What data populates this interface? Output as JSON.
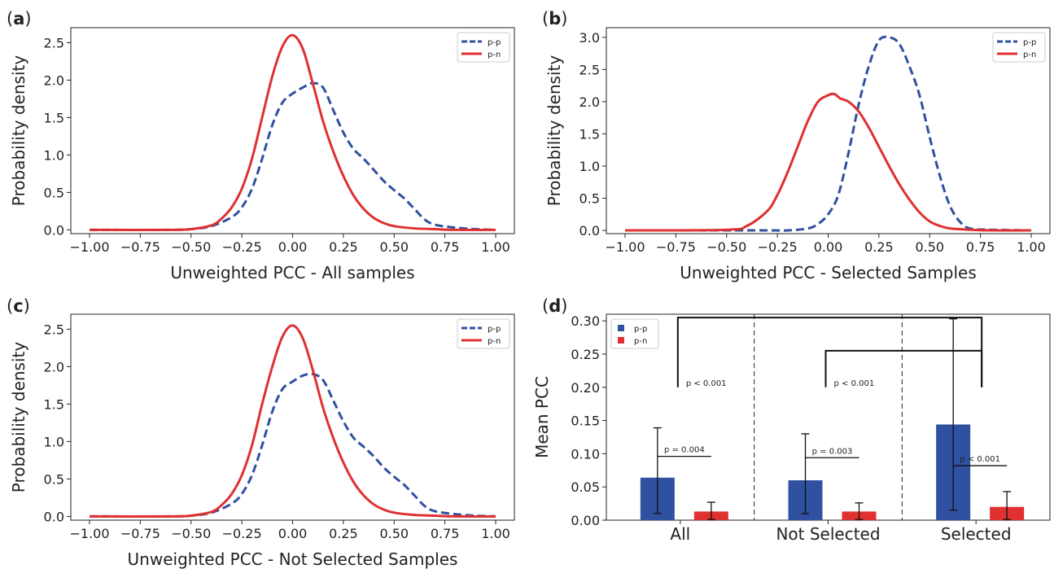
{
  "chart_data": [
    {
      "panel": "a",
      "type": "line",
      "xlabel": "Unweighted PCC - All samples",
      "ylabel": "Probability density",
      "xlim": [
        -1.0,
        1.0
      ],
      "ylim": [
        -0.05,
        2.7
      ],
      "x_ticks": [
        -1.0,
        -0.75,
        -0.5,
        -0.25,
        0.0,
        0.25,
        0.5,
        0.75,
        1.0
      ],
      "x_tick_labels": [
        "−1.00",
        "−0.75",
        "−0.50",
        "−0.25",
        "0.00",
        "0.25",
        "0.50",
        "0.75",
        "1.00"
      ],
      "y_ticks": [
        0.0,
        0.5,
        1.0,
        1.5,
        2.0,
        2.5
      ],
      "y_tick_labels": [
        "0.0",
        "0.5",
        "1.0",
        "1.5",
        "2.0",
        "2.5"
      ],
      "legend_position": "top-right",
      "grid": false,
      "series": [
        {
          "name": "p-p",
          "style": "dashed",
          "color": "#3050a0",
          "x": [
            -1.0,
            -0.6,
            -0.5,
            -0.4,
            -0.3,
            -0.25,
            -0.2,
            -0.15,
            -0.1,
            -0.05,
            0.0,
            0.05,
            0.1,
            0.15,
            0.2,
            0.25,
            0.3,
            0.35,
            0.4,
            0.45,
            0.5,
            0.55,
            0.6,
            0.65,
            0.7,
            0.8,
            0.9,
            1.0
          ],
          "y": [
            0.0,
            0.0,
            0.01,
            0.05,
            0.17,
            0.3,
            0.55,
            0.95,
            1.4,
            1.7,
            1.82,
            1.9,
            1.96,
            1.9,
            1.6,
            1.3,
            1.08,
            0.95,
            0.8,
            0.65,
            0.53,
            0.42,
            0.28,
            0.14,
            0.07,
            0.03,
            0.01,
            0.0
          ]
        },
        {
          "name": "p-n",
          "style": "solid",
          "color": "#e03030",
          "x": [
            -1.0,
            -0.6,
            -0.5,
            -0.4,
            -0.35,
            -0.3,
            -0.25,
            -0.2,
            -0.15,
            -0.1,
            -0.05,
            0.0,
            0.05,
            0.1,
            0.15,
            0.2,
            0.25,
            0.3,
            0.35,
            0.4,
            0.45,
            0.5,
            0.6,
            0.7,
            0.8,
            1.0
          ],
          "y": [
            0.0,
            0.0,
            0.01,
            0.06,
            0.15,
            0.3,
            0.55,
            0.95,
            1.5,
            2.05,
            2.45,
            2.6,
            2.42,
            1.95,
            1.45,
            1.05,
            0.72,
            0.46,
            0.28,
            0.16,
            0.09,
            0.05,
            0.02,
            0.01,
            0.0,
            0.0
          ]
        }
      ]
    },
    {
      "panel": "b",
      "type": "line",
      "xlabel": "Unweighted PCC - Selected Samples",
      "ylabel": "Probability density",
      "xlim": [
        -1.0,
        1.0
      ],
      "ylim": [
        -0.05,
        3.15
      ],
      "x_ticks": [
        -1.0,
        -0.75,
        -0.5,
        -0.25,
        0.0,
        0.25,
        0.5,
        0.75,
        1.0
      ],
      "x_tick_labels": [
        "−1.00",
        "−0.75",
        "−0.50",
        "−0.25",
        "0.00",
        "0.25",
        "0.50",
        "0.75",
        "1.00"
      ],
      "y_ticks": [
        0.0,
        0.5,
        1.0,
        1.5,
        2.0,
        2.5,
        3.0
      ],
      "y_tick_labels": [
        "0.0",
        "0.5",
        "1.0",
        "1.5",
        "2.0",
        "2.5",
        "3.0"
      ],
      "legend_position": "top-right",
      "grid": false,
      "series": [
        {
          "name": "p-p",
          "style": "dashed",
          "color": "#3050a0",
          "x": [
            -1.0,
            -0.3,
            -0.2,
            -0.1,
            -0.05,
            0.0,
            0.05,
            0.1,
            0.15,
            0.2,
            0.25,
            0.3,
            0.35,
            0.4,
            0.45,
            0.5,
            0.55,
            0.6,
            0.65,
            0.7,
            0.8,
            1.0
          ],
          "y": [
            0.0,
            0.0,
            0.0,
            0.03,
            0.1,
            0.25,
            0.55,
            1.2,
            1.95,
            2.55,
            2.95,
            3.0,
            2.9,
            2.55,
            2.1,
            1.45,
            0.85,
            0.38,
            0.13,
            0.03,
            0.01,
            0.0
          ]
        },
        {
          "name": "p-n",
          "style": "solid",
          "color": "#e03030",
          "x": [
            -1.0,
            -0.5,
            -0.4,
            -0.3,
            -0.25,
            -0.2,
            -0.15,
            -0.1,
            -0.05,
            0.0,
            0.03,
            0.06,
            0.1,
            0.15,
            0.2,
            0.25,
            0.3,
            0.35,
            0.4,
            0.45,
            0.5,
            0.55,
            0.6,
            0.7,
            0.8,
            1.0
          ],
          "y": [
            0.0,
            0.01,
            0.07,
            0.3,
            0.55,
            0.9,
            1.3,
            1.7,
            2.0,
            2.1,
            2.12,
            2.05,
            2.0,
            1.85,
            1.6,
            1.3,
            1.0,
            0.72,
            0.48,
            0.28,
            0.14,
            0.07,
            0.03,
            0.01,
            0.0,
            0.0
          ]
        }
      ]
    },
    {
      "panel": "c",
      "type": "line",
      "xlabel": "Unweighted PCC - Not Selected Samples",
      "ylabel": "Probability density",
      "xlim": [
        -1.0,
        1.0
      ],
      "ylim": [
        -0.05,
        2.7
      ],
      "x_ticks": [
        -1.0,
        -0.75,
        -0.5,
        -0.25,
        0.0,
        0.25,
        0.5,
        0.75,
        1.0
      ],
      "x_tick_labels": [
        "−1.00",
        "−0.75",
        "−0.50",
        "−0.25",
        "0.00",
        "0.25",
        "0.50",
        "0.75",
        "1.00"
      ],
      "y_ticks": [
        0.0,
        0.5,
        1.0,
        1.5,
        2.0,
        2.5
      ],
      "y_tick_labels": [
        "0.0",
        "0.5",
        "1.0",
        "1.5",
        "2.0",
        "2.5"
      ],
      "legend_position": "top-right",
      "grid": false,
      "series": [
        {
          "name": "p-p",
          "style": "dashed",
          "color": "#3050a0",
          "x": [
            -1.0,
            -0.6,
            -0.5,
            -0.4,
            -0.3,
            -0.25,
            -0.2,
            -0.15,
            -0.1,
            -0.05,
            0.0,
            0.05,
            0.1,
            0.15,
            0.2,
            0.25,
            0.3,
            0.35,
            0.4,
            0.45,
            0.5,
            0.55,
            0.6,
            0.65,
            0.7,
            0.8,
            0.9,
            1.0
          ],
          "y": [
            0.0,
            0.0,
            0.01,
            0.05,
            0.17,
            0.3,
            0.55,
            0.95,
            1.4,
            1.7,
            1.8,
            1.88,
            1.9,
            1.82,
            1.55,
            1.27,
            1.05,
            0.93,
            0.8,
            0.65,
            0.53,
            0.42,
            0.28,
            0.14,
            0.07,
            0.03,
            0.01,
            0.0
          ]
        },
        {
          "name": "p-n",
          "style": "solid",
          "color": "#e03030",
          "x": [
            -1.0,
            -0.6,
            -0.5,
            -0.4,
            -0.35,
            -0.3,
            -0.25,
            -0.2,
            -0.15,
            -0.1,
            -0.05,
            0.0,
            0.05,
            0.1,
            0.15,
            0.2,
            0.25,
            0.3,
            0.35,
            0.4,
            0.45,
            0.5,
            0.6,
            0.7,
            0.8,
            1.0
          ],
          "y": [
            0.0,
            0.0,
            0.01,
            0.06,
            0.15,
            0.3,
            0.55,
            0.95,
            1.5,
            2.0,
            2.4,
            2.55,
            2.38,
            1.95,
            1.45,
            1.05,
            0.72,
            0.46,
            0.28,
            0.16,
            0.09,
            0.05,
            0.02,
            0.01,
            0.0,
            0.0
          ]
        }
      ]
    },
    {
      "panel": "d",
      "type": "bar",
      "xlabel": "",
      "ylabel": "Mean PCC",
      "categories": [
        "All",
        "Not Selected",
        "Selected"
      ],
      "ylim": [
        0.0,
        0.31
      ],
      "y_ticks": [
        0.0,
        0.05,
        0.1,
        0.15,
        0.2,
        0.25,
        0.3
      ],
      "y_tick_labels": [
        "0.00",
        "0.05",
        "0.10",
        "0.15",
        "0.20",
        "0.25",
        "0.30"
      ],
      "legend_position": "top-left",
      "grid": false,
      "series": [
        {
          "name": "p-p",
          "color": "#3050a0",
          "values": [
            0.064,
            0.06,
            0.144
          ],
          "err_low": [
            0.01,
            0.01,
            0.015
          ],
          "err_high": [
            0.139,
            0.13,
            0.303
          ]
        },
        {
          "name": "p-n",
          "color": "#e03030",
          "values": [
            0.013,
            0.013,
            0.02
          ],
          "err_low": [
            0.001,
            0.001,
            0.001
          ],
          "err_high": [
            0.027,
            0.026,
            0.043
          ]
        }
      ],
      "within_annotations": [
        {
          "category": "All",
          "text": "p = 0.004",
          "y": 0.096
        },
        {
          "category": "Not Selected",
          "text": "p = 0.003",
          "y": 0.094
        },
        {
          "category": "Selected",
          "text": "p < 0.001",
          "y": 0.082
        }
      ],
      "between_annotations": [
        {
          "from": "All",
          "to": "Selected",
          "text": "p < 0.001",
          "top": 0.305,
          "drop": 0.2
        },
        {
          "from": "Not Selected",
          "to": "Selected",
          "text": "p < 0.001",
          "top": 0.255,
          "drop": 0.2
        }
      ],
      "separators": "dashed"
    }
  ],
  "panel_letters": [
    "a",
    "b",
    "c",
    "d"
  ]
}
